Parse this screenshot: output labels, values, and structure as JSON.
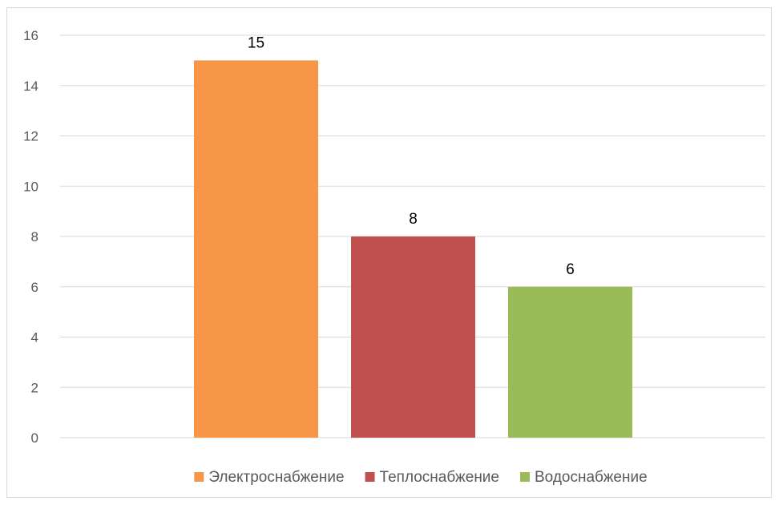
{
  "chart_data": {
    "type": "bar",
    "categories": [
      "Электроснабжение",
      "Теплоснабжение",
      "Водоснабжение"
    ],
    "values": [
      15,
      8,
      6
    ],
    "colors": [
      "#F79646",
      "#C0504D",
      "#9BBB59"
    ],
    "data_labels": [
      "15",
      "8",
      "6"
    ],
    "ylim": [
      0,
      16
    ],
    "y_ticks": [
      0,
      2,
      4,
      6,
      8,
      10,
      12,
      14,
      16
    ],
    "grid": true,
    "legend_position": "bottom",
    "title": "",
    "xlabel": "",
    "ylabel": ""
  }
}
